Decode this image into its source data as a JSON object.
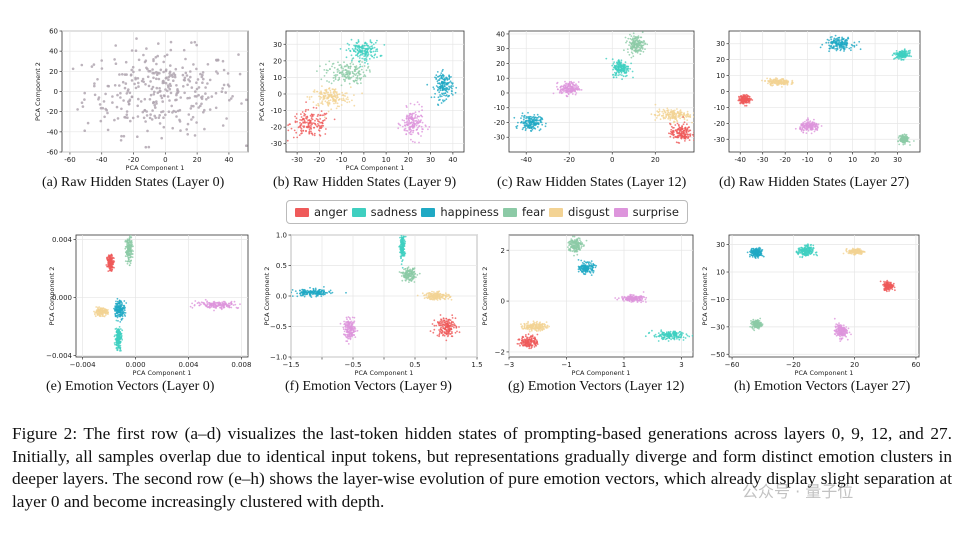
{
  "legend": [
    {
      "label": "anger",
      "color": "#ef5a5a"
    },
    {
      "label": "sadness",
      "color": "#3fcfc0"
    },
    {
      "label": "happiness",
      "color": "#1fa9c4"
    },
    {
      "label": "fear",
      "color": "#8ccaa6"
    },
    {
      "label": "disgust",
      "color": "#f3d394"
    },
    {
      "label": "surprise",
      "color": "#dd95dc"
    }
  ],
  "caption": "Figure 2: The first row (a–d) visualizes the last-token hidden states of prompting-based generations across layers 0, 9, 12, and 27. Initially, all samples overlap due to identical input tokens, but representations gradually diverge and form distinct emotion clusters in deeper layers. The second row (e–h) shows the layer-wise evolution of pure emotion vectors, which already display slight separation at layer 0 and become increasingly clustered with depth.",
  "watermark": "公众号 · 量子位",
  "chart_data": [
    {
      "type": "scatter",
      "panel": "a",
      "subcaption": "(a) Raw Hidden States (Layer 0)",
      "xlabel": "PCA Component 1",
      "ylabel": "PCA Component 2",
      "xlim": [
        -65,
        52
      ],
      "ylim": [
        -60,
        60
      ],
      "xticks": [
        -60,
        -40,
        -20,
        0,
        20,
        40
      ],
      "yticks": [
        -60,
        -40,
        -20,
        0,
        20,
        40,
        60
      ],
      "grid": true,
      "clusters": [
        {
          "label": "all",
          "center": [
            -3,
            0
          ],
          "spread": [
            24,
            21
          ],
          "color": "#b0a6b0",
          "marker": "dot"
        }
      ]
    },
    {
      "type": "scatter",
      "panel": "b",
      "subcaption": "(b) Raw Hidden States (Layer 9)",
      "xlabel": "PCA Component 1",
      "ylabel": "PCA Component 2",
      "xlim": [
        -35,
        45
      ],
      "ylim": [
        -35,
        38
      ],
      "xticks": [
        -30,
        -20,
        -10,
        0,
        10,
        20,
        30,
        40
      ],
      "yticks": [
        -30,
        -20,
        -10,
        0,
        10,
        20,
        30
      ],
      "grid": true,
      "clusters": [
        {
          "label": "anger",
          "center": [
            -24,
            -18
          ],
          "spread": [
            4.5,
            4
          ]
        },
        {
          "label": "disgust",
          "center": [
            -15,
            -2
          ],
          "spread": [
            4.5,
            3
          ]
        },
        {
          "label": "fear",
          "center": [
            -8,
            13
          ],
          "spread": [
            4.5,
            3.5
          ]
        },
        {
          "label": "sadness",
          "center": [
            0,
            26
          ],
          "spread": [
            3.5,
            3
          ]
        },
        {
          "label": "happiness",
          "center": [
            36,
            5
          ],
          "spread": [
            2,
            4
          ]
        },
        {
          "label": "surprise",
          "center": [
            22,
            -18
          ],
          "spread": [
            2.5,
            4.5
          ]
        }
      ]
    },
    {
      "type": "scatter",
      "panel": "c",
      "subcaption": "(c) Raw Hidden States (Layer 12)",
      "xlabel": "",
      "ylabel": "",
      "xlim": [
        -48,
        38
      ],
      "ylim": [
        -40,
        42
      ],
      "xticks": [
        -40,
        -20,
        0,
        20
      ],
      "yticks": [
        -30,
        -20,
        -10,
        0,
        10,
        20,
        30,
        40
      ],
      "grid": true,
      "clusters": [
        {
          "label": "happiness",
          "center": [
            -38,
            -20
          ],
          "spread": [
            2.5,
            2.5
          ]
        },
        {
          "label": "surprise",
          "center": [
            -20,
            3
          ],
          "spread": [
            2.2,
            2.2
          ]
        },
        {
          "label": "sadness",
          "center": [
            4,
            17
          ],
          "spread": [
            2,
            3
          ]
        },
        {
          "label": "fear",
          "center": [
            11,
            33
          ],
          "spread": [
            2,
            3
          ]
        },
        {
          "label": "disgust",
          "center": [
            28,
            -15
          ],
          "spread": [
            4,
            2
          ]
        },
        {
          "label": "anger",
          "center": [
            32,
            -27
          ],
          "spread": [
            2.5,
            3
          ]
        }
      ]
    },
    {
      "type": "scatter",
      "panel": "d",
      "subcaption": "(d) Raw Hidden States (Layer 27)",
      "xlabel": "",
      "ylabel": "",
      "xlim": [
        -45,
        40
      ],
      "ylim": [
        -38,
        38
      ],
      "xticks": [
        -40,
        -30,
        -20,
        -10,
        0,
        10,
        20,
        30
      ],
      "yticks": [
        -30,
        -20,
        -10,
        0,
        10,
        20,
        30
      ],
      "grid": true,
      "clusters": [
        {
          "label": "anger",
          "center": [
            -38,
            -5
          ],
          "spread": [
            1.3,
            1.3
          ]
        },
        {
          "label": "disgust",
          "center": [
            -23,
            6
          ],
          "spread": [
            2.5,
            1
          ]
        },
        {
          "label": "surprise",
          "center": [
            -9,
            -22
          ],
          "spread": [
            2.2,
            1.6
          ]
        },
        {
          "label": "happiness",
          "center": [
            4,
            30
          ],
          "spread": [
            3,
            2
          ]
        },
        {
          "label": "sadness",
          "center": [
            32,
            23
          ],
          "spread": [
            1.5,
            1.3
          ]
        },
        {
          "label": "fear",
          "center": [
            33,
            -30
          ],
          "spread": [
            1,
            1.2
          ]
        }
      ]
    },
    {
      "type": "scatter",
      "panel": "e",
      "subcaption": "(e) Emotion Vectors (Layer 0)",
      "xlabel": "PCA Component 1",
      "ylabel": "PCA Component 2",
      "xlim": [
        -0.0045,
        0.0085
      ],
      "ylim": [
        -0.0041,
        0.0043
      ],
      "xticks": [
        -0.004,
        0.0,
        0.004,
        0.008
      ],
      "xticklabels": [
        "−0.004",
        "0.000",
        "0.004",
        "0.008"
      ],
      "yticks": [
        -0.004,
        0.0,
        0.004
      ],
      "yticklabels": [
        "−0.004",
        "0.000",
        "0.004"
      ],
      "grid": true,
      "clusters": [
        {
          "label": "fear",
          "center": [
            -0.0005,
            0.0033
          ],
          "spread": [
            0.00012,
            0.00045
          ]
        },
        {
          "label": "anger",
          "center": [
            -0.0019,
            0.0024
          ],
          "spread": [
            0.00012,
            0.00025
          ]
        },
        {
          "label": "happiness",
          "center": [
            -0.0012,
            -0.0008
          ],
          "spread": [
            0.0002,
            0.0003
          ]
        },
        {
          "label": "sadness",
          "center": [
            -0.0013,
            -0.0028
          ],
          "spread": [
            0.00012,
            0.0004
          ]
        },
        {
          "label": "disgust",
          "center": [
            -0.0026,
            -0.001
          ],
          "spread": [
            0.00025,
            0.00012
          ]
        },
        {
          "label": "surprise",
          "center": [
            0.0062,
            -0.0005
          ],
          "spread": [
            0.0008,
            0.00012
          ]
        }
      ]
    },
    {
      "type": "scatter",
      "panel": "f",
      "subcaption": "(f) Emotion Vectors (Layer 9)",
      "xlabel": "PCA Component 1",
      "ylabel": "PCA Component 2",
      "xlim": [
        -1.5,
        1.5
      ],
      "ylim": [
        -1.0,
        1.0
      ],
      "xticks": [
        -1.5,
        -1.0,
        -0.5,
        0.0,
        0.5,
        1.0,
        1.5
      ],
      "xticklabels": [
        "−1.5",
        "",
        "−0.5",
        "",
        "0.5",
        "",
        "1.5"
      ],
      "yticks": [
        -1.0,
        -0.5,
        0.0,
        0.5,
        1.0
      ],
      "yticklabels": [
        "−1.0",
        "−0.5",
        "0.0",
        "0.5",
        "1.0"
      ],
      "grid": true,
      "clusters": [
        {
          "label": "sadness",
          "center": [
            0.3,
            0.8
          ],
          "spread": [
            0.02,
            0.1
          ]
        },
        {
          "label": "fear",
          "center": [
            0.4,
            0.35
          ],
          "spread": [
            0.05,
            0.05
          ]
        },
        {
          "label": "happiness",
          "center": [
            -1.15,
            0.05
          ],
          "spread": [
            0.15,
            0.03
          ]
        },
        {
          "label": "disgust",
          "center": [
            0.85,
            0.0
          ],
          "spread": [
            0.1,
            0.03
          ]
        },
        {
          "label": "surprise",
          "center": [
            -0.55,
            -0.55
          ],
          "spread": [
            0.05,
            0.08
          ]
        },
        {
          "label": "anger",
          "center": [
            1.0,
            -0.5
          ],
          "spread": [
            0.08,
            0.08
          ]
        }
      ]
    },
    {
      "type": "scatter",
      "panel": "g",
      "subcaption": "(g) Emotion Vectors (Layer 12)",
      "xlabel": "PCA Component 1",
      "ylabel": "PCA Component 2",
      "xlim": [
        -3,
        3.4
      ],
      "ylim": [
        -2.2,
        2.6
      ],
      "xticks": [
        -3,
        -1,
        1,
        3
      ],
      "xticklabels": [
        "−3",
        "−1",
        "1",
        "3"
      ],
      "yticks": [
        -2,
        0,
        2
      ],
      "yticklabels": [
        "−2",
        "0",
        "2"
      ],
      "grid": true,
      "clusters": [
        {
          "label": "fear",
          "center": [
            -0.7,
            2.2
          ],
          "spread": [
            0.12,
            0.15
          ]
        },
        {
          "label": "happiness",
          "center": [
            -0.3,
            1.3
          ],
          "spread": [
            0.12,
            0.1
          ]
        },
        {
          "label": "surprise",
          "center": [
            1.3,
            0.1
          ],
          "spread": [
            0.2,
            0.06
          ]
        },
        {
          "label": "sadness",
          "center": [
            2.6,
            -1.35
          ],
          "spread": [
            0.3,
            0.08
          ]
        },
        {
          "label": "disgust",
          "center": [
            -2.1,
            -1.0
          ],
          "spread": [
            0.2,
            0.08
          ]
        },
        {
          "label": "anger",
          "center": [
            -2.3,
            -1.6
          ],
          "spread": [
            0.15,
            0.12
          ]
        }
      ]
    },
    {
      "type": "scatter",
      "panel": "h",
      "subcaption": "(h) Emotion Vectors (Layer 27)",
      "xlabel": "PCA Component 1",
      "ylabel": "PCA Component 2",
      "xlim": [
        -62,
        62
      ],
      "ylim": [
        -52,
        37
      ],
      "xticks": [
        -60,
        -20,
        20,
        60
      ],
      "xticklabels": [
        "−60",
        "−20",
        "20",
        "60"
      ],
      "yticks": [
        -50,
        -30,
        -10,
        10,
        30
      ],
      "yticklabels": [
        "−50",
        "−30",
        "−10",
        "10",
        "30"
      ],
      "grid": true,
      "clusters": [
        {
          "label": "happiness",
          "center": [
            -44,
            24
          ],
          "spread": [
            2,
            1.6
          ]
        },
        {
          "label": "sadness",
          "center": [
            -12,
            25
          ],
          "spread": [
            2.5,
            2.2
          ]
        },
        {
          "label": "disgust",
          "center": [
            21,
            25
          ],
          "spread": [
            2.5,
            1
          ]
        },
        {
          "label": "anger",
          "center": [
            42,
            0
          ],
          "spread": [
            1.5,
            1.5
          ]
        },
        {
          "label": "fear",
          "center": [
            -44,
            -28
          ],
          "spread": [
            1.5,
            1.5
          ]
        },
        {
          "label": "surprise",
          "center": [
            11,
            -33
          ],
          "spread": [
            2,
            2.5
          ]
        }
      ]
    }
  ]
}
